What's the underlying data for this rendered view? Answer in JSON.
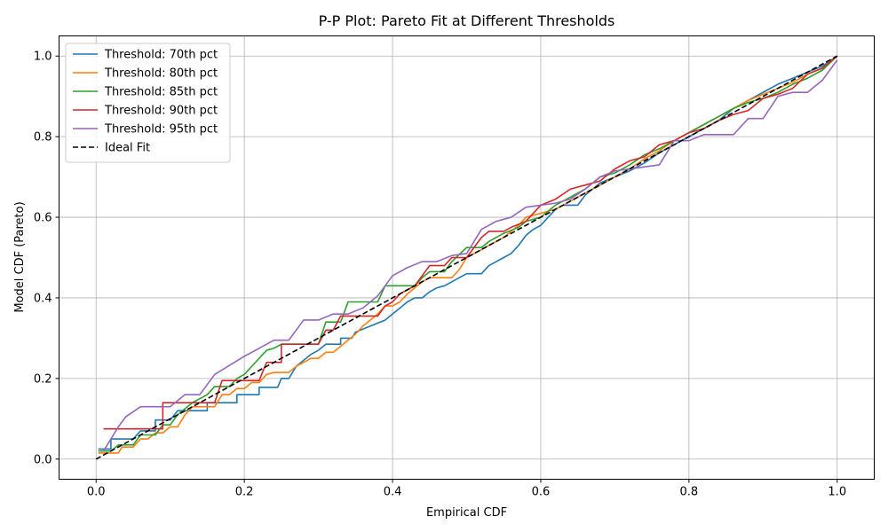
{
  "chart_data": {
    "type": "line",
    "title": "P-P Plot: Pareto Fit at Different Thresholds",
    "xlabel": "Empirical CDF",
    "ylabel": "Model CDF (Pareto)",
    "xlim": [
      -0.05,
      1.05
    ],
    "ylim": [
      -0.05,
      1.05
    ],
    "xticks": [
      0.0,
      0.2,
      0.4,
      0.6,
      0.8,
      1.0
    ],
    "yticks": [
      0.0,
      0.2,
      0.4,
      0.6,
      0.8,
      1.0
    ],
    "xtick_labels": [
      "0.0",
      "0.2",
      "0.4",
      "0.6",
      "0.8",
      "1.0"
    ],
    "ytick_labels": [
      "0.0",
      "0.2",
      "0.4",
      "0.6",
      "0.8",
      "1.0"
    ],
    "grid": true,
    "legend_position": "top-left",
    "series": [
      {
        "name": "Threshold: 70th pct",
        "color": "#1f77b4",
        "dashed": false,
        "points": [
          [
            0.003,
            0.025
          ],
          [
            0.02,
            0.025
          ],
          [
            0.02,
            0.05
          ],
          [
            0.05,
            0.05
          ],
          [
            0.06,
            0.07
          ],
          [
            0.08,
            0.07
          ],
          [
            0.08,
            0.097
          ],
          [
            0.1,
            0.097
          ],
          [
            0.11,
            0.12
          ],
          [
            0.15,
            0.12
          ],
          [
            0.15,
            0.14
          ],
          [
            0.19,
            0.14
          ],
          [
            0.19,
            0.16
          ],
          [
            0.22,
            0.16
          ],
          [
            0.22,
            0.178
          ],
          [
            0.245,
            0.178
          ],
          [
            0.25,
            0.2
          ],
          [
            0.26,
            0.2
          ],
          [
            0.265,
            0.215
          ],
          [
            0.27,
            0.23
          ],
          [
            0.28,
            0.245
          ],
          [
            0.29,
            0.26
          ],
          [
            0.3,
            0.27
          ],
          [
            0.31,
            0.285
          ],
          [
            0.33,
            0.285
          ],
          [
            0.33,
            0.3
          ],
          [
            0.345,
            0.3
          ],
          [
            0.35,
            0.315
          ],
          [
            0.37,
            0.33
          ],
          [
            0.39,
            0.345
          ],
          [
            0.4,
            0.36
          ],
          [
            0.41,
            0.375
          ],
          [
            0.42,
            0.39
          ],
          [
            0.43,
            0.4
          ],
          [
            0.44,
            0.4
          ],
          [
            0.45,
            0.415
          ],
          [
            0.46,
            0.425
          ],
          [
            0.47,
            0.43
          ],
          [
            0.48,
            0.44
          ],
          [
            0.49,
            0.45
          ],
          [
            0.5,
            0.46
          ],
          [
            0.52,
            0.46
          ],
          [
            0.53,
            0.48
          ],
          [
            0.54,
            0.49
          ],
          [
            0.55,
            0.5
          ],
          [
            0.56,
            0.51
          ],
          [
            0.57,
            0.53
          ],
          [
            0.58,
            0.555
          ],
          [
            0.59,
            0.57
          ],
          [
            0.6,
            0.58
          ],
          [
            0.61,
            0.6
          ],
          [
            0.62,
            0.62
          ],
          [
            0.63,
            0.63
          ],
          [
            0.65,
            0.63
          ],
          [
            0.66,
            0.655
          ],
          [
            0.67,
            0.67
          ],
          [
            0.68,
            0.685
          ],
          [
            0.7,
            0.7
          ],
          [
            0.72,
            0.715
          ],
          [
            0.74,
            0.735
          ],
          [
            0.76,
            0.76
          ],
          [
            0.78,
            0.78
          ],
          [
            0.8,
            0.8
          ],
          [
            0.82,
            0.82
          ],
          [
            0.84,
            0.84
          ],
          [
            0.86,
            0.87
          ],
          [
            0.88,
            0.89
          ],
          [
            0.9,
            0.91
          ],
          [
            0.92,
            0.93
          ],
          [
            0.94,
            0.945
          ],
          [
            0.96,
            0.96
          ],
          [
            0.98,
            0.975
          ],
          [
            1.0,
            1.0
          ]
        ]
      },
      {
        "name": "Threshold: 80th pct",
        "color": "#ff7f0e",
        "dashed": false,
        "points": [
          [
            0.003,
            0.015
          ],
          [
            0.03,
            0.015
          ],
          [
            0.035,
            0.03
          ],
          [
            0.05,
            0.03
          ],
          [
            0.06,
            0.05
          ],
          [
            0.07,
            0.05
          ],
          [
            0.08,
            0.065
          ],
          [
            0.09,
            0.065
          ],
          [
            0.1,
            0.08
          ],
          [
            0.11,
            0.08
          ],
          [
            0.12,
            0.11
          ],
          [
            0.13,
            0.13
          ],
          [
            0.16,
            0.13
          ],
          [
            0.17,
            0.16
          ],
          [
            0.18,
            0.16
          ],
          [
            0.19,
            0.175
          ],
          [
            0.2,
            0.175
          ],
          [
            0.21,
            0.19
          ],
          [
            0.22,
            0.19
          ],
          [
            0.23,
            0.21
          ],
          [
            0.24,
            0.215
          ],
          [
            0.26,
            0.215
          ],
          [
            0.27,
            0.23
          ],
          [
            0.28,
            0.24
          ],
          [
            0.29,
            0.25
          ],
          [
            0.3,
            0.25
          ],
          [
            0.31,
            0.265
          ],
          [
            0.32,
            0.265
          ],
          [
            0.33,
            0.28
          ],
          [
            0.34,
            0.295
          ],
          [
            0.35,
            0.31
          ],
          [
            0.36,
            0.33
          ],
          [
            0.37,
            0.345
          ],
          [
            0.38,
            0.36
          ],
          [
            0.39,
            0.38
          ],
          [
            0.4,
            0.38
          ],
          [
            0.41,
            0.39
          ],
          [
            0.42,
            0.41
          ],
          [
            0.43,
            0.425
          ],
          [
            0.44,
            0.44
          ],
          [
            0.45,
            0.45
          ],
          [
            0.48,
            0.45
          ],
          [
            0.49,
            0.47
          ],
          [
            0.5,
            0.5
          ],
          [
            0.52,
            0.52
          ],
          [
            0.53,
            0.53
          ],
          [
            0.55,
            0.55
          ],
          [
            0.56,
            0.565
          ],
          [
            0.57,
            0.58
          ],
          [
            0.58,
            0.6
          ],
          [
            0.6,
            0.61
          ],
          [
            0.62,
            0.62
          ],
          [
            0.64,
            0.64
          ],
          [
            0.66,
            0.66
          ],
          [
            0.68,
            0.68
          ],
          [
            0.7,
            0.7
          ],
          [
            0.72,
            0.72
          ],
          [
            0.74,
            0.745
          ],
          [
            0.76,
            0.765
          ],
          [
            0.78,
            0.79
          ],
          [
            0.8,
            0.81
          ],
          [
            0.82,
            0.83
          ],
          [
            0.84,
            0.85
          ],
          [
            0.86,
            0.87
          ],
          [
            0.88,
            0.89
          ],
          [
            0.9,
            0.905
          ],
          [
            0.92,
            0.92
          ],
          [
            0.94,
            0.935
          ],
          [
            0.96,
            0.955
          ],
          [
            0.98,
            0.97
          ],
          [
            1.0,
            1.0
          ]
        ]
      },
      {
        "name": "Threshold: 85th pct",
        "color": "#2ca02c",
        "dashed": false,
        "points": [
          [
            0.003,
            0.02
          ],
          [
            0.02,
            0.02
          ],
          [
            0.03,
            0.035
          ],
          [
            0.05,
            0.035
          ],
          [
            0.06,
            0.06
          ],
          [
            0.08,
            0.06
          ],
          [
            0.09,
            0.085
          ],
          [
            0.1,
            0.085
          ],
          [
            0.11,
            0.11
          ],
          [
            0.13,
            0.14
          ],
          [
            0.15,
            0.16
          ],
          [
            0.16,
            0.18
          ],
          [
            0.18,
            0.18
          ],
          [
            0.19,
            0.2
          ],
          [
            0.2,
            0.21
          ],
          [
            0.21,
            0.23
          ],
          [
            0.22,
            0.25
          ],
          [
            0.23,
            0.27
          ],
          [
            0.24,
            0.275
          ],
          [
            0.25,
            0.285
          ],
          [
            0.3,
            0.285
          ],
          [
            0.31,
            0.34
          ],
          [
            0.33,
            0.34
          ],
          [
            0.34,
            0.39
          ],
          [
            0.38,
            0.39
          ],
          [
            0.39,
            0.43
          ],
          [
            0.43,
            0.43
          ],
          [
            0.44,
            0.45
          ],
          [
            0.45,
            0.465
          ],
          [
            0.47,
            0.465
          ],
          [
            0.48,
            0.49
          ],
          [
            0.5,
            0.525
          ],
          [
            0.52,
            0.525
          ],
          [
            0.53,
            0.54
          ],
          [
            0.55,
            0.56
          ],
          [
            0.57,
            0.575
          ],
          [
            0.58,
            0.59
          ],
          [
            0.6,
            0.6
          ],
          [
            0.62,
            0.63
          ],
          [
            0.64,
            0.65
          ],
          [
            0.66,
            0.67
          ],
          [
            0.68,
            0.7
          ],
          [
            0.7,
            0.71
          ],
          [
            0.72,
            0.73
          ],
          [
            0.74,
            0.755
          ],
          [
            0.76,
            0.77
          ],
          [
            0.78,
            0.79
          ],
          [
            0.8,
            0.81
          ],
          [
            0.82,
            0.83
          ],
          [
            0.84,
            0.85
          ],
          [
            0.86,
            0.87
          ],
          [
            0.88,
            0.885
          ],
          [
            0.9,
            0.895
          ],
          [
            0.92,
            0.91
          ],
          [
            0.94,
            0.93
          ],
          [
            0.96,
            0.945
          ],
          [
            0.98,
            0.965
          ],
          [
            1.0,
            1.0
          ]
        ]
      },
      {
        "name": "Threshold: 90th pct",
        "color": "#d62728",
        "dashed": false,
        "points": [
          [
            0.01,
            0.075
          ],
          [
            0.09,
            0.075
          ],
          [
            0.09,
            0.14
          ],
          [
            0.16,
            0.14
          ],
          [
            0.17,
            0.195
          ],
          [
            0.22,
            0.195
          ],
          [
            0.23,
            0.24
          ],
          [
            0.25,
            0.24
          ],
          [
            0.25,
            0.285
          ],
          [
            0.3,
            0.285
          ],
          [
            0.31,
            0.32
          ],
          [
            0.32,
            0.32
          ],
          [
            0.33,
            0.355
          ],
          [
            0.38,
            0.355
          ],
          [
            0.39,
            0.38
          ],
          [
            0.4,
            0.39
          ],
          [
            0.41,
            0.41
          ],
          [
            0.43,
            0.43
          ],
          [
            0.45,
            0.48
          ],
          [
            0.47,
            0.48
          ],
          [
            0.48,
            0.5
          ],
          [
            0.5,
            0.5
          ],
          [
            0.52,
            0.55
          ],
          [
            0.53,
            0.565
          ],
          [
            0.55,
            0.565
          ],
          [
            0.56,
            0.575
          ],
          [
            0.58,
            0.59
          ],
          [
            0.6,
            0.63
          ],
          [
            0.62,
            0.645
          ],
          [
            0.64,
            0.67
          ],
          [
            0.66,
            0.68
          ],
          [
            0.68,
            0.69
          ],
          [
            0.7,
            0.72
          ],
          [
            0.72,
            0.74
          ],
          [
            0.74,
            0.75
          ],
          [
            0.76,
            0.78
          ],
          [
            0.78,
            0.79
          ],
          [
            0.8,
            0.81
          ],
          [
            0.82,
            0.82
          ],
          [
            0.84,
            0.84
          ],
          [
            0.86,
            0.855
          ],
          [
            0.88,
            0.865
          ],
          [
            0.9,
            0.895
          ],
          [
            0.92,
            0.905
          ],
          [
            0.94,
            0.92
          ],
          [
            0.96,
            0.955
          ],
          [
            0.98,
            0.97
          ],
          [
            1.0,
            1.0
          ]
        ]
      },
      {
        "name": "Threshold: 95th pct",
        "color": "#9467bd",
        "dashed": false,
        "points": [
          [
            0.01,
            0.02
          ],
          [
            0.02,
            0.05
          ],
          [
            0.03,
            0.08
          ],
          [
            0.04,
            0.105
          ],
          [
            0.06,
            0.13
          ],
          [
            0.1,
            0.13
          ],
          [
            0.12,
            0.16
          ],
          [
            0.14,
            0.16
          ],
          [
            0.16,
            0.21
          ],
          [
            0.2,
            0.255
          ],
          [
            0.24,
            0.295
          ],
          [
            0.26,
            0.295
          ],
          [
            0.28,
            0.345
          ],
          [
            0.3,
            0.345
          ],
          [
            0.32,
            0.36
          ],
          [
            0.34,
            0.36
          ],
          [
            0.36,
            0.375
          ],
          [
            0.38,
            0.405
          ],
          [
            0.4,
            0.455
          ],
          [
            0.42,
            0.475
          ],
          [
            0.44,
            0.49
          ],
          [
            0.46,
            0.49
          ],
          [
            0.48,
            0.505
          ],
          [
            0.5,
            0.51
          ],
          [
            0.52,
            0.57
          ],
          [
            0.54,
            0.59
          ],
          [
            0.56,
            0.6
          ],
          [
            0.58,
            0.625
          ],
          [
            0.6,
            0.63
          ],
          [
            0.62,
            0.635
          ],
          [
            0.64,
            0.645
          ],
          [
            0.66,
            0.67
          ],
          [
            0.68,
            0.7
          ],
          [
            0.7,
            0.715
          ],
          [
            0.72,
            0.72
          ],
          [
            0.74,
            0.725
          ],
          [
            0.76,
            0.73
          ],
          [
            0.78,
            0.79
          ],
          [
            0.8,
            0.79
          ],
          [
            0.82,
            0.805
          ],
          [
            0.84,
            0.805
          ],
          [
            0.86,
            0.805
          ],
          [
            0.88,
            0.845
          ],
          [
            0.9,
            0.845
          ],
          [
            0.92,
            0.9
          ],
          [
            0.94,
            0.91
          ],
          [
            0.96,
            0.91
          ],
          [
            0.98,
            0.94
          ],
          [
            1.0,
            0.99
          ]
        ]
      },
      {
        "name": "Ideal Fit",
        "color": "#000000",
        "dashed": true,
        "points": [
          [
            0.0,
            0.0
          ],
          [
            1.0,
            1.0
          ]
        ]
      }
    ]
  }
}
